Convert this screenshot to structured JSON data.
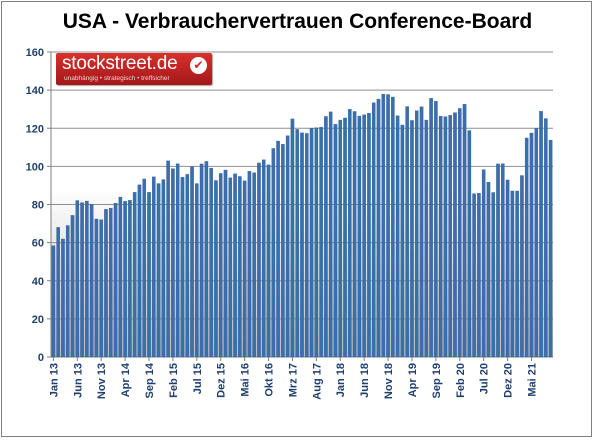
{
  "logo": {
    "brand": "stockstreet.de",
    "slogan": "unabhängig • strategisch • treffsicher",
    "check_icon": "✔"
  },
  "colors": {
    "bar": "#3a6fae",
    "bar_edge": "#2c5a93",
    "grid": "#8f8f8f",
    "axis": "#7f7f7f",
    "plot_gradient_top": "#ffffff",
    "plot_gradient_bottom": "#bcbcbc",
    "tick_label": "#1f3f6e",
    "title": "#000000",
    "logo_red": "#c62a26"
  },
  "chart_data": {
    "type": "bar",
    "title": "USA - Verbrauchervertrauen Conference-Board",
    "xlabel": "",
    "ylabel": "",
    "ylim": [
      0,
      160
    ],
    "yticks": [
      0,
      20,
      40,
      60,
      80,
      100,
      120,
      140,
      160
    ],
    "grid": true,
    "legend": "none",
    "x_tick_labels": [
      "Jan 13",
      "Jun 13",
      "Nov 13",
      "Apr 14",
      "Sep 14",
      "Feb 15",
      "Jul 15",
      "Dez 15",
      "Mai 16",
      "Okt 16",
      "Mrz 17",
      "Aug 17",
      "Jan 18",
      "Jun 18",
      "Nov 18",
      "Apr 19",
      "Sep 19",
      "Feb 20",
      "Jul 20",
      "Dez 20",
      "Mai 21"
    ],
    "x_tick_indices": [
      0,
      5,
      10,
      15,
      20,
      25,
      30,
      35,
      40,
      45,
      50,
      55,
      60,
      65,
      70,
      75,
      80,
      85,
      90,
      95,
      100
    ],
    "values": [
      58.4,
      68.0,
      61.9,
      69.0,
      74.3,
      82.1,
      81.0,
      81.8,
      80.2,
      72.4,
      72.0,
      77.5,
      78.1,
      80.7,
      83.9,
      81.7,
      82.2,
      86.4,
      90.3,
      93.4,
      86.4,
      94.5,
      91.0,
      93.1,
      102.9,
      98.8,
      101.4,
      94.3,
      95.8,
      99.8,
      91.0,
      101.3,
      102.6,
      99.1,
      92.6,
      96.3,
      98.1,
      94.0,
      96.1,
      94.7,
      92.4,
      97.4,
      96.7,
      101.8,
      103.5,
      100.8,
      109.4,
      113.3,
      111.6,
      116.1,
      124.9,
      119.4,
      117.6,
      117.3,
      120.0,
      120.3,
      120.6,
      126.2,
      128.6,
      122.1,
      124.3,
      125.4,
      130.0,
      128.8,
      126.4,
      127.1,
      127.9,
      133.4,
      135.3,
      137.9,
      137.7,
      136.4,
      126.6,
      121.7,
      131.4,
      124.1,
      129.2,
      131.3,
      124.3,
      135.7,
      134.2,
      126.3,
      126.1,
      126.8,
      128.2,
      130.4,
      132.6,
      118.8,
      85.7,
      85.9,
      98.3,
      91.7,
      86.3,
      101.3,
      101.4,
      92.9,
      87.1,
      87.1,
      95.2,
      114.9,
      117.5,
      120.0,
      128.9,
      125.1,
      113.8
    ]
  }
}
